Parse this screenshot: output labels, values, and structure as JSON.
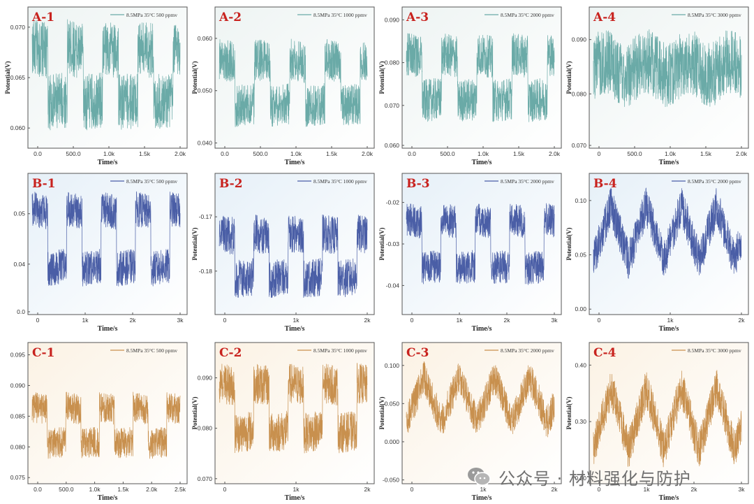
{
  "chart_data": [
    {
      "id": "A-1",
      "type": "line",
      "panel_label": "A-1",
      "legend": "8.5MPa 35°C 500 ppmv",
      "xlabel": "Time/s",
      "ylabel": "Potential(V)",
      "xticks": [
        "0.0",
        "500.0",
        "1.0k",
        "1.5k",
        "2.0k"
      ],
      "yticks": [
        "0.060",
        "0.065",
        "0.070"
      ],
      "ylim": [
        0.058,
        0.072
      ],
      "color": "#6aaaa7",
      "bg": "#eef4f3",
      "row": 0,
      "col": 0,
      "pattern": "square",
      "cycles": 4.2,
      "lo": 0.0625,
      "hi": 0.068,
      "noise": 0.0028
    },
    {
      "id": "A-2",
      "type": "line",
      "panel_label": "A-2",
      "legend": "8.5MPa 35°C 1000 ppmv",
      "xlabel": "Time/s",
      "ylabel": "Potential(V)",
      "xticks": [
        "0.0",
        "500.0",
        "1.0k",
        "1.5k",
        "2.0k"
      ],
      "yticks": [
        "0.040",
        "0.050",
        "0.060"
      ],
      "ylim": [
        0.039,
        0.066
      ],
      "color": "#6aaaa7",
      "bg": "#eef4f3",
      "row": 0,
      "col": 1,
      "pattern": "square",
      "cycles": 4.2,
      "lo": 0.047,
      "hi": 0.056,
      "noise": 0.004
    },
    {
      "id": "A-3",
      "type": "line",
      "panel_label": "A-3",
      "legend": "8.5MPa 35°C 2000 ppmv",
      "xlabel": "Time/s",
      "ylabel": "Potential(V)",
      "xticks": [
        "0.0",
        "500.0",
        "1.0k",
        "1.5k",
        "2.0k"
      ],
      "yticks": [
        "0.060",
        "0.070",
        "0.080",
        "0.090"
      ],
      "ylim": [
        0.06,
        0.093
      ],
      "color": "#6aaaa7",
      "bg": "#eef4f3",
      "row": 0,
      "col": 2,
      "pattern": "square",
      "cycles": 4.2,
      "lo": 0.071,
      "hi": 0.082,
      "noise": 0.005
    },
    {
      "id": "A-4",
      "type": "line",
      "panel_label": "A-4",
      "legend": "8.5MPa 35°C 3000 ppmv",
      "xlabel": "Time/s",
      "ylabel": "Potential(V)",
      "xticks": [
        "0",
        "500.0",
        "1.0k",
        "1.5k",
        "2.0k"
      ],
      "yticks": [
        "0.070",
        "0.080",
        "0.090"
      ],
      "ylim": [
        0.07,
        0.096
      ],
      "color": "#6aaaa7",
      "bg": "#eef4f3",
      "row": 0,
      "col": 3,
      "pattern": "dense",
      "cycles": 3.5,
      "lo": 0.0835,
      "hi": 0.086,
      "noise": 0.006
    },
    {
      "id": "B-1",
      "type": "line",
      "panel_label": "B-1",
      "legend": "8.5MPa 35°C 500 ppmv",
      "xlabel": "Time/s",
      "ylabel": "",
      "xticks": [
        "0",
        "1k",
        "2k",
        "3k"
      ],
      "yticks": [
        "0.0",
        "0.04",
        "0.05"
      ],
      "ylim": [
        0.03,
        0.058
      ],
      "color": "#4a5ea6",
      "bg": "#e6f0f8",
      "row": 1,
      "col": 0,
      "pattern": "square",
      "cycles": 4.3,
      "lo": 0.039,
      "hi": 0.051,
      "noise": 0.0035
    },
    {
      "id": "B-2",
      "type": "line",
      "panel_label": "B-2",
      "legend": "8.5MPa 35°C 1000 ppmv",
      "xlabel": "Time/s",
      "ylabel": "Potential(V)",
      "xticks": [
        "0",
        "1k",
        "2k"
      ],
      "yticks": [
        "-0.17",
        "-0.18"
      ],
      "ylim": [
        -0.188,
        -0.162
      ],
      "color": "#4a5ea6",
      "bg": "#e6f0f8",
      "row": 1,
      "col": 1,
      "pattern": "square",
      "cycles": 4.3,
      "lo": -0.1815,
      "hi": -0.173,
      "noise": 0.0035
    },
    {
      "id": "B-3",
      "type": "line",
      "panel_label": "B-3",
      "legend": "8.5MPa 35°C 2000 ppmv",
      "xlabel": "Time/s",
      "ylabel": "Potential(V)",
      "xticks": [
        "0",
        "1k",
        "2k",
        "3k"
      ],
      "yticks": [
        "-0.02",
        "-0.03",
        "-0.04"
      ],
      "ylim": [
        -0.047,
        -0.013
      ],
      "color": "#4a5ea6",
      "bg": "#e6f0f8",
      "row": 1,
      "col": 2,
      "pattern": "square",
      "cycles": 4.3,
      "lo": -0.036,
      "hi": -0.024,
      "noise": 0.004
    },
    {
      "id": "B-4",
      "type": "line",
      "panel_label": "B-4",
      "legend": "8.5MPa 35°C 2000 ppmv",
      "xlabel": "Time/s",
      "ylabel": "Potential(V)",
      "xticks": [
        "0",
        "1k",
        "2k"
      ],
      "yticks": [
        "0.00",
        "0.05",
        "0.10"
      ],
      "ylim": [
        -0.005,
        0.125
      ],
      "color": "#4a5ea6",
      "bg": "#e6f0f8",
      "row": 1,
      "col": 3,
      "pattern": "tri",
      "cycles": 4.2,
      "lo": 0.045,
      "hi": 0.095,
      "noise": 0.018
    },
    {
      "id": "C-1",
      "type": "line",
      "panel_label": "C-1",
      "legend": "8.5MPa 35°C 500 ppmv",
      "xlabel": "Time/s",
      "ylabel": "",
      "xticks": [
        "0.0",
        "500.0",
        "1.0k",
        "1.5k",
        "2.0k",
        "2.5k"
      ],
      "yticks": [
        "0.075",
        "0.080",
        "0.085",
        "0.090",
        "0.095"
      ],
      "ylim": [
        0.074,
        0.097
      ],
      "color": "#c8904e",
      "bg": "#fbf2e4",
      "row": 2,
      "col": 0,
      "pattern": "square",
      "cycles": 4.4,
      "lo": 0.0805,
      "hi": 0.0865,
      "noise": 0.0025
    },
    {
      "id": "C-2",
      "type": "line",
      "panel_label": "C-2",
      "legend": "8.5MPa 35°C 1000 ppmv",
      "xlabel": "Time/s",
      "ylabel": "Potential(V)",
      "xticks": [
        "0",
        "1k",
        "2k"
      ],
      "yticks": [
        "0.070",
        "0.080",
        "0.090"
      ],
      "ylim": [
        0.069,
        0.097
      ],
      "color": "#c8904e",
      "bg": "#fbf2e4",
      "row": 2,
      "col": 1,
      "pattern": "square",
      "cycles": 4.3,
      "lo": 0.079,
      "hi": 0.089,
      "noise": 0.004
    },
    {
      "id": "C-3",
      "type": "line",
      "panel_label": "C-3",
      "legend": "8.5MPa 35°C 2000 ppmv",
      "xlabel": "Time/s",
      "ylabel": "Potential(V)",
      "xticks": [
        "0",
        "1k",
        "2k"
      ],
      "yticks": [
        "-0.050",
        "0.000",
        "0.050",
        "0.100"
      ],
      "ylim": [
        -0.055,
        0.13
      ],
      "color": "#c8904e",
      "bg": "#fbf2e4",
      "row": 2,
      "col": 2,
      "pattern": "tri",
      "cycles": 4.2,
      "lo": 0.025,
      "hi": 0.085,
      "noise": 0.022
    },
    {
      "id": "C-4",
      "type": "line",
      "panel_label": "C-4",
      "legend": "8.5MPa 35°C 3000 ppmv",
      "xlabel": "Time/s",
      "ylabel": "Potential(V)",
      "xticks": [
        "0",
        "1k",
        "2k",
        "3k"
      ],
      "yticks": [
        "0.20",
        "0.30",
        "0.40"
      ],
      "ylim": [
        0.19,
        0.44
      ],
      "color": "#c8904e",
      "bg": "#fbf2e4",
      "row": 2,
      "col": 3,
      "pattern": "tri",
      "cycles": 4.2,
      "lo": 0.25,
      "hi": 0.36,
      "noise": 0.035
    }
  ],
  "watermark": "公众号 · 材料强化与防护"
}
